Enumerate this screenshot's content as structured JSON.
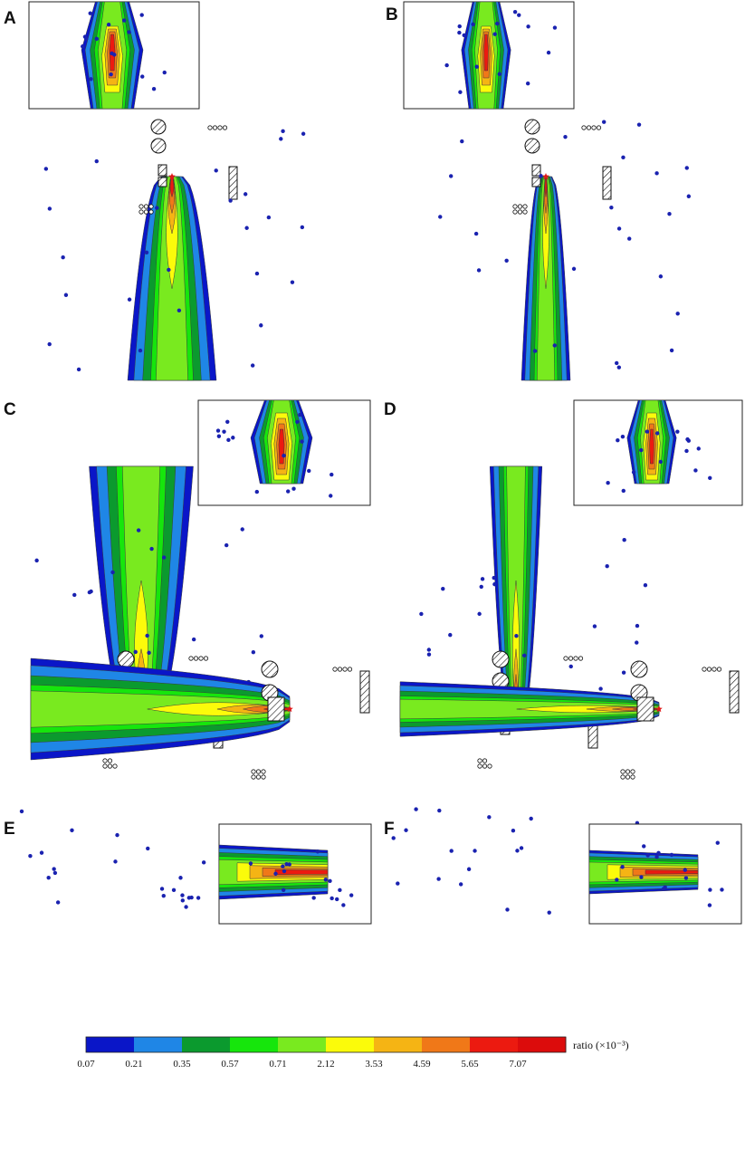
{
  "panels": [
    {
      "id": "A",
      "orient": "down",
      "variant": "wide"
    },
    {
      "id": "B",
      "orient": "down",
      "variant": "narrow"
    },
    {
      "id": "C",
      "orient": "up",
      "variant": "wide"
    },
    {
      "id": "D",
      "orient": "up",
      "variant": "narrow"
    },
    {
      "id": "E",
      "orient": "left",
      "variant": "wide"
    },
    {
      "id": "F",
      "orient": "left",
      "variant": "narrow"
    }
  ],
  "colorbar": {
    "label": "ratio (×10⁻³)",
    "ticks": [
      "0.07",
      "0.21",
      "0.35",
      "0.57",
      "0.71",
      "2.12",
      "3.53",
      "4.59",
      "5.65",
      "7.07"
    ],
    "colors": [
      "#0a16c8",
      "#1f86e6",
      "#0b9a2e",
      "#16e60c",
      "#79ea1f",
      "#fbfb0a",
      "#f5b414",
      "#f07818",
      "#ec1a10",
      "#dc0c0c"
    ]
  },
  "markers": {
    "source_color": "#e01818",
    "point_color": "#1a22b0"
  }
}
